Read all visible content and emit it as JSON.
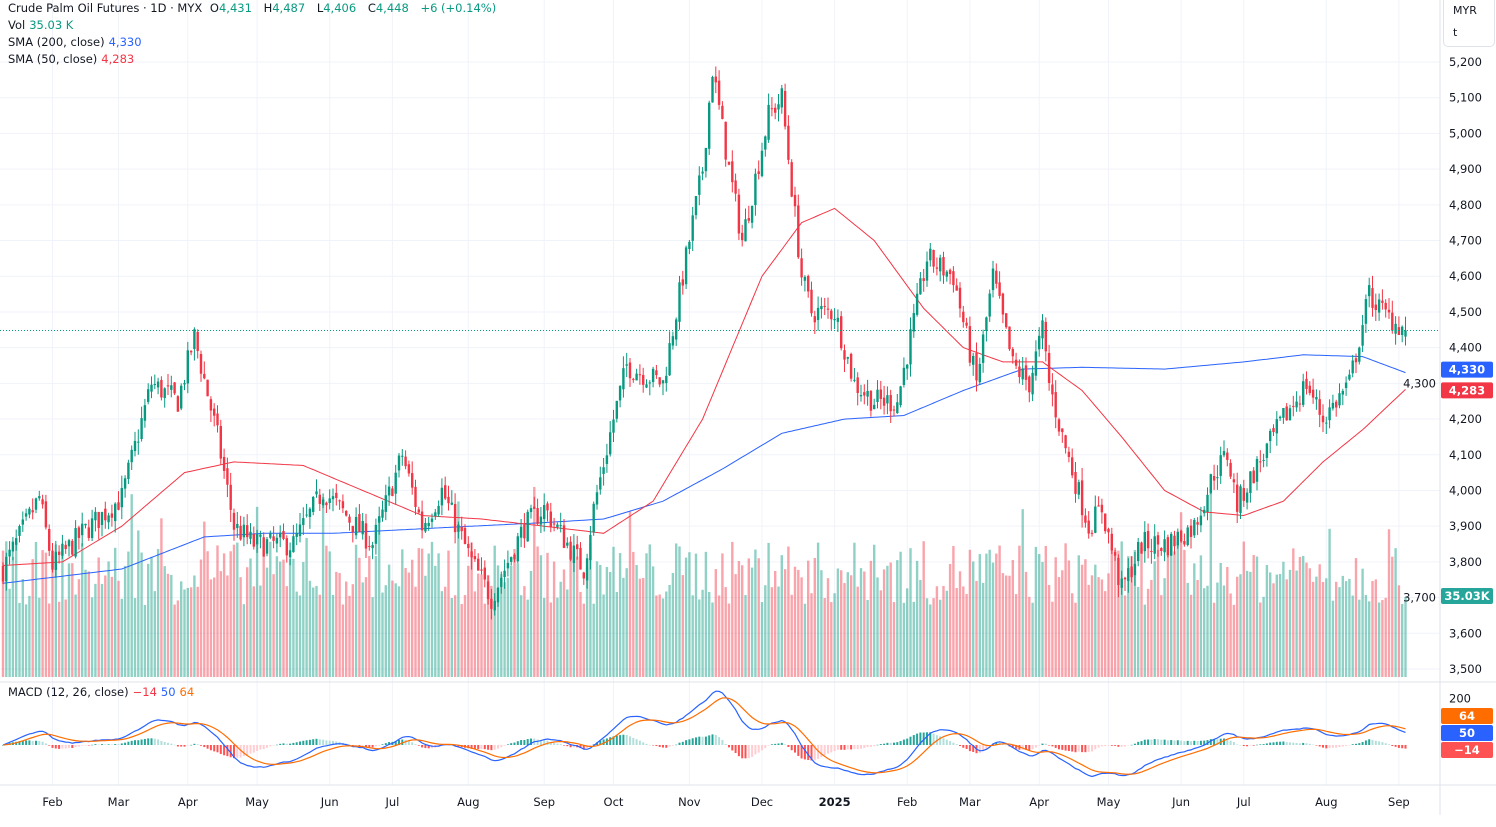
{
  "legend": {
    "symbol": "Crude Palm Oil Futures · 1D · MYX",
    "o_label": "O",
    "o": "4,431",
    "h_label": "H",
    "h": "4,487",
    "l_label": "L",
    "l": "4,406",
    "c_label": "C",
    "c": "4,448",
    "change": "+6 (+0.14%)",
    "vol_label": "Vol",
    "vol": "35.03 K",
    "sma200_label": "SMA (200, close)",
    "sma200": "4,330",
    "sma50_label": "SMA (50, close)",
    "sma50": "4,283",
    "macd_label": "MACD (12, 26, close)",
    "macd_hist": "−14",
    "macd_line": "50",
    "macd_signal": "64"
  },
  "axis_unit": {
    "currency": "MYR",
    "unit": "t"
  },
  "badges": {
    "sma200": "4,330",
    "sma50": "4,283",
    "volume": "35.03K",
    "macd_signal": "64",
    "macd_line": "50",
    "macd_hist": "−14"
  },
  "colors": {
    "up": "#089981",
    "down": "#f23645",
    "sma200": "#2962ff",
    "sma50": "#f23645",
    "macd": "#2962ff",
    "signal": "#ff6d00"
  },
  "chart_data": {
    "type": "candlestick",
    "title": "Crude Palm Oil Futures · 1D · MYX",
    "ylim": [
      3480,
      5240
    ],
    "y_ticks": [
      "5,200",
      "5,100",
      "5,000",
      "4,900",
      "4,800",
      "4,700",
      "4,600",
      "4,500",
      "4,400",
      "4,300",
      "4,200",
      "4,100",
      "4,000",
      "3,900",
      "3,800",
      "3,700",
      "3,600",
      "3,500"
    ],
    "macd_ticks": [
      "200"
    ],
    "bar_count": 426,
    "x_ticks": [
      {
        "label": "Feb",
        "bar": 15
      },
      {
        "label": "Mar",
        "bar": 35
      },
      {
        "label": "Apr",
        "bar": 56
      },
      {
        "label": "May",
        "bar": 77
      },
      {
        "label": "Jun",
        "bar": 99
      },
      {
        "label": "Jul",
        "bar": 118
      },
      {
        "label": "Aug",
        "bar": 141
      },
      {
        "label": "Sep",
        "bar": 164
      },
      {
        "label": "Oct",
        "bar": 185
      },
      {
        "label": "Nov",
        "bar": 208
      },
      {
        "label": "Dec",
        "bar": 230
      },
      {
        "label": "2025",
        "bar": 252
      },
      {
        "label": "Feb",
        "bar": 274
      },
      {
        "label": "Mar",
        "bar": 293
      },
      {
        "label": "Apr",
        "bar": 314
      },
      {
        "label": "May",
        "bar": 335
      },
      {
        "label": "Jun",
        "bar": 357
      },
      {
        "label": "Jul",
        "bar": 376
      },
      {
        "label": "Aug",
        "bar": 401
      },
      {
        "label": "Sep",
        "bar": 423
      }
    ],
    "close_path": [
      [
        0,
        3780
      ],
      [
        11,
        3980
      ],
      [
        15,
        3790
      ],
      [
        24,
        3880
      ],
      [
        36,
        3980
      ],
      [
        45,
        4300
      ],
      [
        53,
        4250
      ],
      [
        58,
        4430
      ],
      [
        65,
        4150
      ],
      [
        70,
        3900
      ],
      [
        76,
        3850
      ],
      [
        88,
        3850
      ],
      [
        97,
        4000
      ],
      [
        112,
        3850
      ],
      [
        121,
        4100
      ],
      [
        127,
        3900
      ],
      [
        133,
        4000
      ],
      [
        142,
        3800
      ],
      [
        148,
        3700
      ],
      [
        158,
        3900
      ],
      [
        164,
        3950
      ],
      [
        176,
        3780
      ],
      [
        179,
        3950
      ],
      [
        185,
        4200
      ],
      [
        189,
        4350
      ],
      [
        200,
        4300
      ],
      [
        208,
        4700
      ],
      [
        212,
        4900
      ],
      [
        215,
        5180
      ],
      [
        220,
        4900
      ],
      [
        224,
        4700
      ],
      [
        232,
        5050
      ],
      [
        236,
        5100
      ],
      [
        242,
        4600
      ],
      [
        245,
        4500
      ],
      [
        252,
        4500
      ],
      [
        258,
        4300
      ],
      [
        264,
        4250
      ],
      [
        271,
        4250
      ],
      [
        280,
        4650
      ],
      [
        288,
        4600
      ],
      [
        295,
        4300
      ],
      [
        300,
        4600
      ],
      [
        306,
        4350
      ],
      [
        311,
        4300
      ],
      [
        315,
        4450
      ],
      [
        317,
        4300
      ],
      [
        321,
        4150
      ],
      [
        329,
        3900
      ],
      [
        333,
        3950
      ],
      [
        339,
        3720
      ],
      [
        345,
        3850
      ],
      [
        353,
        3850
      ],
      [
        361,
        3900
      ],
      [
        367,
        4050
      ],
      [
        371,
        4100
      ],
      [
        374,
        3960
      ],
      [
        379,
        4050
      ],
      [
        388,
        4200
      ],
      [
        395,
        4300
      ],
      [
        400,
        4200
      ],
      [
        408,
        4300
      ],
      [
        414,
        4550
      ],
      [
        418,
        4500
      ],
      [
        425,
        4448
      ]
    ],
    "sma50_path": [
      [
        0,
        3790
      ],
      [
        18,
        3800
      ],
      [
        36,
        3900
      ],
      [
        55,
        4050
      ],
      [
        70,
        4080
      ],
      [
        91,
        4070
      ],
      [
        109,
        4000
      ],
      [
        127,
        3930
      ],
      [
        145,
        3920
      ],
      [
        164,
        3900
      ],
      [
        182,
        3880
      ],
      [
        197,
        3970
      ],
      [
        212,
        4200
      ],
      [
        230,
        4600
      ],
      [
        242,
        4750
      ],
      [
        252,
        4790
      ],
      [
        264,
        4700
      ],
      [
        279,
        4510
      ],
      [
        291,
        4400
      ],
      [
        303,
        4360
      ],
      [
        315,
        4360
      ],
      [
        327,
        4280
      ],
      [
        339,
        4150
      ],
      [
        352,
        4000
      ],
      [
        364,
        3940
      ],
      [
        376,
        3930
      ],
      [
        388,
        3970
      ],
      [
        400,
        4080
      ],
      [
        412,
        4170
      ],
      [
        425,
        4283
      ]
    ],
    "sma200_path": [
      [
        0,
        3740
      ],
      [
        18,
        3760
      ],
      [
        36,
        3780
      ],
      [
        61,
        3870
      ],
      [
        79,
        3880
      ],
      [
        100,
        3880
      ],
      [
        121,
        3890
      ],
      [
        142,
        3900
      ],
      [
        164,
        3910
      ],
      [
        182,
        3920
      ],
      [
        200,
        3970
      ],
      [
        218,
        4060
      ],
      [
        236,
        4160
      ],
      [
        255,
        4200
      ],
      [
        273,
        4210
      ],
      [
        291,
        4280
      ],
      [
        309,
        4340
      ],
      [
        327,
        4345
      ],
      [
        352,
        4340
      ],
      [
        376,
        4360
      ],
      [
        394,
        4380
      ],
      [
        412,
        4375
      ],
      [
        425,
        4330
      ]
    ],
    "last_candle": {
      "open": 4431,
      "high": 4487,
      "low": 4406,
      "close": 4448,
      "volume_k": 35.03
    },
    "macd_last": {
      "macd": 50,
      "signal": 64,
      "histogram": -14
    }
  }
}
